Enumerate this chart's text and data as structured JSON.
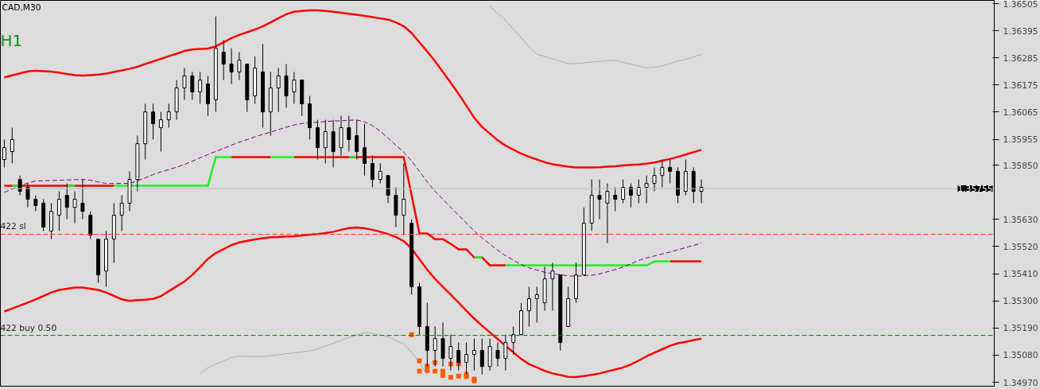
{
  "chart_data": {
    "type": "candlestick",
    "title": "CAD,M30",
    "annotations": [
      "H1"
    ],
    "color": "#000000",
    "categories": [
      null,
      null,
      null,
      null,
      null,
      null,
      null,
      null,
      null,
      null,
      null,
      null,
      null,
      null,
      null,
      null,
      null,
      null,
      null,
      null,
      null,
      null,
      null,
      null,
      null,
      null,
      null,
      null,
      null,
      null,
      null,
      null,
      null,
      null,
      null,
      null,
      null,
      null,
      null,
      null,
      null,
      null,
      null,
      null,
      null,
      null,
      null,
      null,
      null,
      null,
      null,
      null,
      null,
      null,
      null,
      null,
      null,
      null,
      null,
      null,
      null,
      null,
      null,
      null,
      null,
      null,
      null,
      null,
      null,
      null,
      null,
      null,
      null,
      null,
      null,
      null,
      null,
      null,
      null,
      null,
      null,
      null,
      null,
      null,
      null,
      null,
      null,
      null,
      null,
      null
    ],
    "ohlc": [
      [
        1.35873,
        1.35954,
        1.35841,
        1.35921
      ],
      [
        1.35905,
        1.36002,
        1.35857,
        1.35954
      ],
      [
        1.35792,
        1.35808,
        1.35728,
        1.35744
      ],
      [
        1.3576,
        1.35776,
        1.35679,
        1.35712
      ],
      [
        1.35712,
        1.35728,
        1.35663,
        1.35686
      ],
      [
        1.35696,
        1.35712,
        1.35583,
        1.35599
      ],
      [
        1.35583,
        1.35696,
        1.3555,
        1.35663
      ],
      [
        1.35647,
        1.35744,
        1.35583,
        1.35712
      ],
      [
        1.35728,
        1.35776,
        1.35631,
        1.35679
      ],
      [
        1.35679,
        1.35744,
        1.35615,
        1.35712
      ],
      [
        1.35696,
        1.35792,
        1.35631,
        1.35663
      ],
      [
        1.35647,
        1.35663,
        1.3555,
        1.35567
      ],
      [
        1.3555,
        1.3555,
        1.35373,
        1.35405
      ],
      [
        1.35421,
        1.35583,
        1.35357,
        1.3555
      ],
      [
        1.3555,
        1.35696,
        1.35454,
        1.35647
      ],
      [
        1.35647,
        1.35728,
        1.35583,
        1.35696
      ],
      [
        1.35696,
        1.35825,
        1.35663,
        1.35792
      ],
      [
        1.35792,
        1.3597,
        1.35744,
        1.35937
      ],
      [
        1.35937,
        1.36099,
        1.35873,
        1.36066
      ],
      [
        1.36066,
        1.36099,
        1.35954,
        1.36018
      ],
      [
        1.36002,
        1.36066,
        1.35905,
        1.36034
      ],
      [
        1.36034,
        1.36099,
        1.36002,
        1.36066
      ],
      [
        1.36066,
        1.36195,
        1.36034,
        1.36163
      ],
      [
        1.36163,
        1.36244,
        1.36115,
        1.36212
      ],
      [
        1.36212,
        1.36228,
        1.36115,
        1.36147
      ],
      [
        1.36147,
        1.36228,
        1.36099,
        1.36195
      ],
      [
        1.36179,
        1.36212,
        1.3605,
        1.36099
      ],
      [
        1.36115,
        1.36453,
        1.36066,
        1.36324
      ],
      [
        1.36308,
        1.36357,
        1.36195,
        1.3626
      ],
      [
        1.3626,
        1.36324,
        1.36179,
        1.36228
      ],
      [
        1.36228,
        1.36308,
        1.36195,
        1.36276
      ],
      [
        1.3626,
        1.3626,
        1.36066,
        1.36115
      ],
      [
        1.36131,
        1.36292,
        1.36099,
        1.36244
      ],
      [
        1.36228,
        1.36341,
        1.36002,
        1.36066
      ],
      [
        1.36066,
        1.36228,
        1.3597,
        1.36163
      ],
      [
        1.36163,
        1.36244,
        1.36066,
        1.36212
      ],
      [
        1.36212,
        1.3626,
        1.36083,
        1.36131
      ],
      [
        1.36147,
        1.36228,
        1.36099,
        1.36195
      ],
      [
        1.36195,
        1.36195,
        1.3605,
        1.36099
      ],
      [
        1.36099,
        1.36131,
        1.35954,
        1.36002
      ],
      [
        1.36002,
        1.36034,
        1.35873,
        1.35921
      ],
      [
        1.35921,
        1.36034,
        1.35857,
        1.35986
      ],
      [
        1.35986,
        1.36034,
        1.35841,
        1.35905
      ],
      [
        1.35921,
        1.3605,
        1.35889,
        1.36002
      ],
      [
        1.36002,
        1.3605,
        1.35905,
        1.35954
      ],
      [
        1.3597,
        1.36034,
        1.35873,
        1.35905
      ],
      [
        1.35921,
        1.36018,
        1.35808,
        1.35857
      ],
      [
        1.35857,
        1.35889,
        1.3576,
        1.35792
      ],
      [
        1.35792,
        1.35857,
        1.35776,
        1.35825
      ],
      [
        1.35808,
        1.35808,
        1.35696,
        1.35728
      ],
      [
        1.35728,
        1.3576,
        1.35599,
        1.35647
      ],
      [
        1.35647,
        1.35857,
        1.35567,
        1.35712
      ],
      [
        1.35615,
        1.35631,
        1.35325,
        1.35357
      ],
      [
        1.35357,
        1.35373,
        1.35163,
        1.35196
      ],
      [
        1.35196,
        1.35292,
        1.35034,
        1.35099
      ],
      [
        1.35099,
        1.35196,
        1.35034,
        1.35147
      ],
      [
        1.35147,
        1.35212,
        1.35034,
        1.35067
      ],
      [
        1.35067,
        1.35163,
        1.35018,
        1.35115
      ],
      [
        1.35099,
        1.35131,
        1.35018,
        1.35051
      ],
      [
        1.35051,
        1.35131,
        1.35002,
        1.35083
      ],
      [
        1.35083,
        1.35147,
        1.35018,
        1.35099
      ],
      [
        1.35099,
        1.35147,
        1.35002,
        1.35034
      ],
      [
        1.35034,
        1.35147,
        1.35018,
        1.35115
      ],
      [
        1.35099,
        1.35131,
        1.35034,
        1.35067
      ],
      [
        1.35067,
        1.35163,
        1.35018,
        1.35131
      ],
      [
        1.35131,
        1.35196,
        1.35083,
        1.35163
      ],
      [
        1.35163,
        1.35292,
        1.35163,
        1.3526
      ],
      [
        1.3526,
        1.35357,
        1.35196,
        1.35309
      ],
      [
        1.35309,
        1.35357,
        1.35212,
        1.35325
      ],
      [
        1.35292,
        1.35438,
        1.3526,
        1.35389
      ],
      [
        1.35389,
        1.35454,
        1.3526,
        1.35421
      ],
      [
        1.35405,
        1.35405,
        1.35099,
        1.35131
      ],
      [
        1.35196,
        1.35357,
        1.35196,
        1.35309
      ],
      [
        1.35309,
        1.35454,
        1.35292,
        1.35405
      ],
      [
        1.35405,
        1.35679,
        1.35405,
        1.35615
      ],
      [
        1.35615,
        1.35792,
        1.35583,
        1.35728
      ],
      [
        1.35728,
        1.35792,
        1.35631,
        1.35712
      ],
      [
        1.35696,
        1.35776,
        1.35534,
        1.35744
      ],
      [
        1.35728,
        1.3576,
        1.35663,
        1.35712
      ],
      [
        1.35712,
        1.35792,
        1.35696,
        1.3576
      ],
      [
        1.3576,
        1.35776,
        1.35679,
        1.35728
      ],
      [
        1.35728,
        1.35792,
        1.35696,
        1.3576
      ],
      [
        1.3576,
        1.35808,
        1.35696,
        1.35776
      ],
      [
        1.35776,
        1.35841,
        1.35744,
        1.35808
      ],
      [
        1.35808,
        1.35873,
        1.3576,
        1.35841
      ],
      [
        1.35841,
        1.35873,
        1.35776,
        1.35825
      ],
      [
        1.35825,
        1.35841,
        1.35696,
        1.35728
      ],
      [
        1.35744,
        1.35873,
        1.35728,
        1.35825
      ],
      [
        1.35825,
        1.35841,
        1.35696,
        1.35744
      ],
      [
        1.35744,
        1.35792,
        1.35696,
        1.3576
      ]
    ],
    "series": [
      {
        "type": "line",
        "color": "#ff0000",
        "line_style": "solid",
        "values": [
          1.36206,
          1.36214,
          1.36222,
          1.3623,
          1.36233,
          1.36231,
          1.36229,
          1.36225,
          1.3622,
          1.36215,
          1.36213,
          1.36215,
          1.36217,
          1.36221,
          1.36228,
          1.36234,
          1.36241,
          1.36249,
          1.3626,
          1.36271,
          1.36281,
          1.36292,
          1.36302,
          1.36313,
          1.36319,
          1.36321,
          1.36323,
          1.36332,
          1.36348,
          1.36365,
          1.36378,
          1.36389,
          1.364,
          1.36413,
          1.36429,
          1.36446,
          1.36462,
          1.36472,
          1.36475,
          1.36478,
          1.36478,
          1.36475,
          1.36472,
          1.36468,
          1.36464,
          1.3646,
          1.36455,
          1.3645,
          1.36445,
          1.3644,
          1.36429,
          1.36413,
          1.36386,
          1.36348,
          1.36311,
          1.36271,
          1.36228,
          1.36184,
          1.36139,
          1.36091,
          1.36042,
          1.36005,
          1.35978,
          1.35951,
          1.35929,
          1.35913,
          1.35897,
          1.35884,
          1.35873,
          1.35862,
          1.35854,
          1.35849,
          1.35844,
          1.35841,
          1.35841,
          1.35841,
          1.35842,
          1.35844,
          1.35846,
          1.35849,
          1.35851,
          1.35853,
          1.35856,
          1.35861,
          1.35868,
          1.35875,
          1.35884,
          1.35893,
          1.35903,
          1.35912
        ]
      },
      {
        "type": "line",
        "color": "#ff0000",
        "line_style": "solid",
        "values": [
          1.35257,
          1.35269,
          1.35281,
          1.35293,
          1.35306,
          1.3532,
          1.35334,
          1.35344,
          1.35349,
          1.35354,
          1.35354,
          1.35349,
          1.35344,
          1.35334,
          1.3532,
          1.35306,
          1.353,
          1.35303,
          1.35305,
          1.35308,
          1.35319,
          1.35339,
          1.35359,
          1.35379,
          1.35405,
          1.35437,
          1.3547,
          1.35494,
          1.3551,
          1.35526,
          1.35537,
          1.35543,
          1.35549,
          1.35554,
          1.35558,
          1.35559,
          1.35561,
          1.35562,
          1.35565,
          1.35568,
          1.35571,
          1.35575,
          1.3558,
          1.35588,
          1.35595,
          1.35597,
          1.35594,
          1.35588,
          1.3558,
          1.35571,
          1.35559,
          1.35542,
          1.35512,
          1.35469,
          1.35426,
          1.35389,
          1.35357,
          1.35325,
          1.35293,
          1.3526,
          1.35228,
          1.35199,
          1.35172,
          1.35145,
          1.35118,
          1.35091,
          1.35064,
          1.35044,
          1.3503,
          1.35016,
          1.35006,
          1.34999,
          1.34992,
          1.34991,
          1.34995,
          1.35,
          1.35006,
          1.35014,
          1.35022,
          1.3503,
          1.35042,
          1.35058,
          1.35075,
          1.3509,
          1.35104,
          1.35118,
          1.35128,
          1.35134,
          1.35141,
          1.35147
        ]
      },
      {
        "type": "line",
        "color": "#ff0000",
        "line_style": "solid",
        "values": [
          1.35767,
          1.35767,
          1.35767,
          1.35767,
          1.35767,
          1.35767,
          1.35767,
          1.35767,
          1.35767,
          1.35767,
          1.35767,
          1.35767,
          1.35767,
          1.35767,
          1.35767,
          null,
          null,
          null,
          null,
          null,
          null,
          null,
          null,
          null,
          null,
          null,
          null,
          null,
          null,
          1.35883,
          1.35883,
          1.35883,
          1.35883,
          1.35883,
          1.35883,
          null,
          null,
          1.35883,
          1.35883,
          1.35883,
          1.35883,
          1.35883,
          1.35883,
          1.35883,
          1.35883,
          1.35883,
          1.35883,
          1.35883,
          1.35883,
          1.35883,
          1.35883,
          1.35883,
          1.35728,
          1.35573,
          1.35573,
          1.3555,
          1.3555,
          1.35531,
          1.35509,
          1.35509,
          1.35476,
          1.35476,
          1.35444,
          1.35444,
          1.35444,
          null,
          null,
          null,
          null,
          null,
          null,
          null,
          null,
          null,
          null,
          null,
          null,
          null,
          null,
          null,
          null,
          null,
          null,
          null,
          null,
          1.3546,
          1.3546,
          1.3546,
          1.3546,
          1.3546
        ]
      },
      {
        "type": "line",
        "color": "#22ee22",
        "line_style": "solid",
        "values": [
          null,
          1.35767,
          1.35767,
          null,
          null,
          null,
          null,
          null,
          1.35767,
          1.35767,
          null,
          null,
          null,
          null,
          1.35767,
          1.35767,
          1.35767,
          1.35767,
          1.35767,
          1.35767,
          1.35767,
          1.35767,
          1.35767,
          1.35767,
          1.35767,
          1.35767,
          1.35767,
          1.35883,
          1.35883,
          1.35883,
          null,
          null,
          null,
          null,
          1.35883,
          1.35883,
          1.35883,
          1.35883,
          null,
          null,
          null,
          null,
          null,
          null,
          1.35883,
          1.35883,
          null,
          null,
          null,
          null,
          null,
          null,
          null,
          null,
          null,
          null,
          null,
          null,
          null,
          null,
          1.35476,
          1.35476,
          null,
          null,
          1.35444,
          1.35444,
          1.35444,
          1.35444,
          1.35444,
          1.35444,
          1.35444,
          1.35444,
          1.35444,
          1.35444,
          1.35444,
          1.35444,
          1.35444,
          1.35444,
          1.35444,
          1.35444,
          1.35444,
          1.35444,
          1.35444,
          1.3546,
          1.3546,
          1.3546,
          null,
          null,
          null,
          null
        ]
      },
      {
        "type": "line",
        "color": "#800080",
        "line_style": "dashed",
        "values": [
          1.3574,
          1.35753,
          1.35766,
          1.35778,
          1.35786,
          1.35787,
          1.35788,
          1.35789,
          1.3579,
          1.35791,
          1.35792,
          1.35789,
          1.35782,
          1.35776,
          1.35776,
          1.35776,
          1.35776,
          1.35786,
          1.35799,
          1.35812,
          1.35823,
          1.35832,
          1.35842,
          1.35853,
          1.35866,
          1.3588,
          1.35893,
          1.35906,
          1.35918,
          1.35931,
          1.35943,
          1.35954,
          1.35965,
          1.35975,
          1.35984,
          1.35994,
          1.36004,
          1.36013,
          1.36019,
          1.36022,
          1.36024,
          1.36027,
          1.36029,
          1.3603,
          1.36032,
          1.36033,
          1.36026,
          1.3601,
          1.35988,
          1.3596,
          1.35931,
          1.35903,
          1.35867,
          1.35825,
          1.35782,
          1.35744,
          1.35712,
          1.35679,
          1.35647,
          1.35615,
          1.35583,
          1.35555,
          1.3553,
          1.35505,
          1.35483,
          1.35465,
          1.35447,
          1.35434,
          1.35425,
          1.35416,
          1.3541,
          1.35406,
          1.35401,
          1.354,
          1.35402,
          1.35404,
          1.35409,
          1.35418,
          1.35427,
          1.35437,
          1.3545,
          1.35464,
          1.35474,
          1.35482,
          1.3549,
          1.35498,
          1.35507,
          1.35516,
          1.35525,
          1.35534
        ]
      },
      {
        "type": "line",
        "color": "#808080",
        "line_style": "dotted",
        "values": [
          null,
          null,
          null,
          null,
          null,
          null,
          null,
          null,
          null,
          null,
          null,
          null,
          null,
          null,
          null,
          null,
          null,
          null,
          null,
          null,
          null,
          null,
          null,
          null,
          null,
          null,
          null,
          null,
          null,
          null,
          null,
          null,
          null,
          null,
          null,
          null,
          null,
          null,
          null,
          null,
          null,
          null,
          null,
          null,
          null,
          null,
          null,
          null,
          null,
          null,
          null,
          null,
          null,
          null,
          null,
          null,
          null,
          null,
          null,
          null,
          null,
          null,
          1.36494,
          1.36465,
          1.36437,
          1.36401,
          1.36366,
          1.3633,
          1.363,
          1.36291,
          1.36281,
          1.36272,
          1.36262,
          1.36262,
          1.36265,
          1.36268,
          1.36271,
          1.36274,
          1.36275,
          1.36267,
          1.3626,
          1.36252,
          1.36245,
          1.36247,
          1.36252,
          1.36262,
          1.36272,
          1.36279,
          1.36289,
          1.36299
        ]
      },
      {
        "type": "line",
        "color": "#808080",
        "line_style": "dotted",
        "values": [
          null,
          null,
          null,
          null,
          null,
          null,
          null,
          null,
          null,
          null,
          null,
          null,
          null,
          null,
          null,
          null,
          null,
          null,
          null,
          null,
          null,
          null,
          null,
          null,
          null,
          1.35005,
          1.35029,
          1.35044,
          1.35057,
          1.3507,
          1.35076,
          1.35075,
          1.35074,
          1.35074,
          1.35078,
          1.35082,
          1.35086,
          1.35089,
          1.35093,
          1.35097,
          1.35105,
          1.35117,
          1.35128,
          1.3514,
          1.35152,
          1.35162,
          1.35172,
          1.35169,
          1.35162,
          1.35154,
          1.3514,
          1.35125,
          1.35091,
          1.35052,
          1.34998,
          null,
          null,
          null,
          null,
          null,
          null,
          null,
          null,
          null,
          null,
          null,
          null,
          null,
          null,
          null,
          null,
          null,
          null,
          null,
          null,
          null,
          null,
          null,
          null,
          null,
          null,
          null,
          null,
          null,
          null,
          null,
          null,
          null,
          null,
          null
        ]
      },
      {
        "type": "scatter",
        "color": "#ff5a0a",
        "marker": "square",
        "values": [
          null,
          null,
          null,
          null,
          null,
          null,
          null,
          null,
          null,
          null,
          null,
          null,
          null,
          null,
          null,
          null,
          null,
          null,
          null,
          null,
          null,
          null,
          null,
          null,
          null,
          null,
          null,
          null,
          null,
          null,
          null,
          null,
          null,
          null,
          null,
          null,
          null,
          null,
          null,
          null,
          null,
          null,
          null,
          null,
          null,
          null,
          null,
          null,
          null,
          null,
          null,
          null,
          1.35163,
          1.35057,
          1.35018,
          1.3505,
          1.34998,
          1.35044,
          1.34995,
          1.35002,
          1.34983,
          null,
          null,
          null,
          null,
          null,
          null,
          null,
          null,
          null,
          null,
          null,
          null,
          null,
          null,
          null,
          null,
          null,
          null,
          null,
          null,
          null,
          null,
          null,
          null,
          null,
          null,
          null,
          null,
          null
        ]
      },
      {
        "type": "scatter",
        "color": "#ff5a0a",
        "marker": "square",
        "values": [
          null,
          null,
          null,
          null,
          null,
          null,
          null,
          null,
          null,
          null,
          null,
          null,
          null,
          null,
          null,
          null,
          null,
          null,
          null,
          null,
          null,
          null,
          null,
          null,
          null,
          null,
          null,
          null,
          null,
          null,
          null,
          null,
          null,
          null,
          null,
          null,
          null,
          null,
          null,
          null,
          null,
          null,
          null,
          null,
          null,
          null,
          null,
          null,
          null,
          null,
          null,
          null,
          null,
          1.35015,
          1.35035,
          1.35015,
          1.35015,
          1.3499,
          1.35045,
          1.34993,
          1.34976,
          null,
          null,
          null,
          null,
          null,
          null,
          null,
          null,
          null,
          null,
          null,
          null,
          null,
          null,
          null,
          null,
          null,
          null,
          null,
          null,
          null,
          null,
          null,
          null,
          null,
          null,
          null,
          null,
          null
        ]
      }
    ],
    "ref_lines": [
      {
        "axis": "y",
        "value": 1.3557,
        "label": "422 sl",
        "color": "#ff4500",
        "line_style": "dashed"
      },
      {
        "axis": "y",
        "value": 1.3516,
        "label": "422 buy 0.50",
        "color": "#008000",
        "line_style": "dashed"
      },
      {
        "axis": "y",
        "value": 1.35755,
        "label": "1.35755",
        "color": "#c0c0c0",
        "line_style": "solid"
      }
    ],
    "ylim": [
      1.34954,
      1.36518
    ],
    "yticks": [
      {
        "value": 1.36505,
        "label": "1.36505"
      },
      {
        "value": 1.36395,
        "label": "1.36395"
      },
      {
        "value": 1.36285,
        "label": "1.36285"
      },
      {
        "value": 1.36175,
        "label": "1.36175"
      },
      {
        "value": 1.36065,
        "label": "1.36065"
      },
      {
        "value": 1.35955,
        "label": "1.35955"
      },
      {
        "value": 1.3585,
        "label": "1.35850"
      },
      {
        "value": 1.3563,
        "label": "1.35630"
      },
      {
        "value": 1.3552,
        "label": "1.35520"
      },
      {
        "value": 1.3541,
        "label": "1.35410"
      },
      {
        "value": 1.353,
        "label": "1.35300"
      },
      {
        "value": 1.3519,
        "label": "1.35190"
      },
      {
        "value": 1.3508,
        "label": "1.35080"
      },
      {
        "value": 1.3497,
        "label": "1.34970"
      }
    ],
    "tick_labels": "y"
  }
}
